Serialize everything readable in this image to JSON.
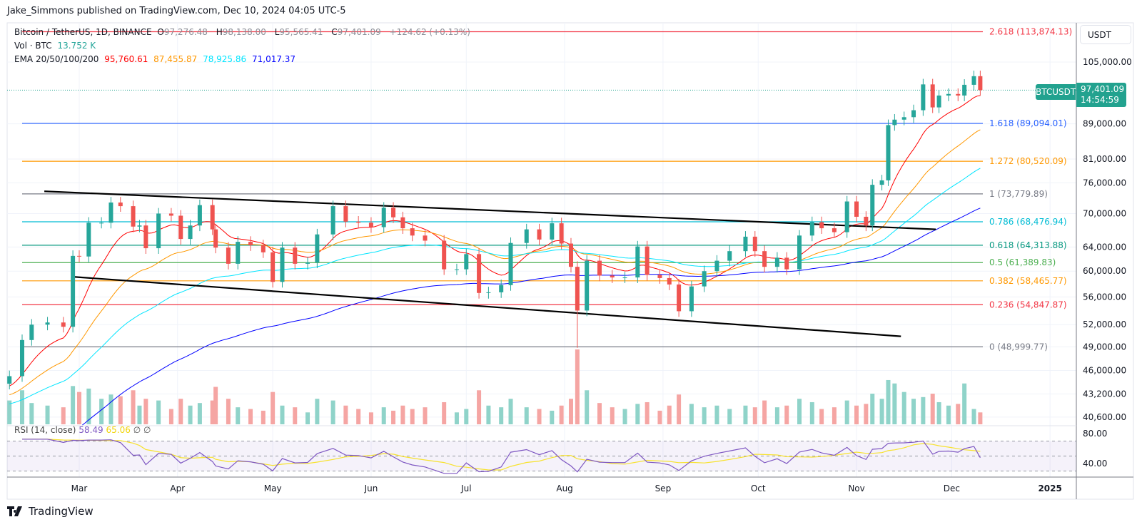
{
  "header": {
    "published": "Jake_Simmons published on TradingView.com, Dec 10, 2024 04:05 UTC-5"
  },
  "legend": {
    "symbol": "Bitcoin / TetherUS, 1D, BINANCE",
    "open_label": "O",
    "open": "97,276.48",
    "high_label": "H",
    "high": "98,138.00",
    "low_label": "L",
    "low": "95,565.41",
    "close_label": "C",
    "close": "97,401.09",
    "change": "+124.62 (+0.13%)",
    "vol_label": "Vol · BTC",
    "vol_value": "13.752 K",
    "ema_label": "EMA 20/50/100/200",
    "ema_values": [
      "95,760.61",
      "87,455.87",
      "78,925.86",
      "71,017.37"
    ],
    "ema_colors": [
      "#ff0000",
      "#ff9800",
      "#00e5ff",
      "#0000ff"
    ]
  },
  "rsi_legend": {
    "label": "RSI (14, close)",
    "rsi": "58.49",
    "ma": "65.06",
    "na1": "∅",
    "na2": "∅"
  },
  "axis": {
    "currency": "USDT",
    "symbol_tag": "BTCUSDT",
    "last_price": "97,401.09",
    "countdown": "14:54:59"
  },
  "brand": {
    "name": "TradingView"
  },
  "colors": {
    "up": "#26a69a",
    "down": "#ef5350",
    "vol_up": "#8fd3c9",
    "vol_down": "#f5a5a3",
    "rsi": "#7e57c2",
    "rsi_ma": "#f7e22e",
    "price_line": "#22a28f"
  },
  "chart_data": {
    "type": "candlestick",
    "scale": "log",
    "grid": true,
    "price_ticks": [
      "105,000.00",
      "89,000.00",
      "81,000.00",
      "76,000.00",
      "70,000.00",
      "64,000.00",
      "60,000.00",
      "56,000.00",
      "52,000.00",
      "49,000.00",
      "46,000.00",
      "43,200.00",
      "40,600.00"
    ],
    "price_tick_values": [
      105000,
      89000,
      81000,
      76000,
      70000,
      64000,
      60000,
      56000,
      52000,
      49000,
      46000,
      43200,
      40600
    ],
    "rsi_ticks": [
      "80.00",
      "40.00"
    ],
    "rsi_tick_values": [
      80,
      40
    ],
    "time_ticks": [
      {
        "label": "Mar",
        "date": "2024-03-01"
      },
      {
        "label": "Apr",
        "date": "2024-04-01"
      },
      {
        "label": "May",
        "date": "2024-05-01"
      },
      {
        "label": "Jun",
        "date": "2024-06-01"
      },
      {
        "label": "Jul",
        "date": "2024-07-01"
      },
      {
        "label": "Aug",
        "date": "2024-08-01"
      },
      {
        "label": "Sep",
        "date": "2024-09-01"
      },
      {
        "label": "Oct",
        "date": "2024-10-01"
      },
      {
        "label": "Nov",
        "date": "2024-11-01"
      },
      {
        "label": "Dec",
        "date": "2024-12-01"
      },
      {
        "label": "2025",
        "date": "2025-01-01",
        "bold": true
      }
    ],
    "fib_levels": [
      {
        "label": "2.618 (113,874.13)",
        "price": 113874.13,
        "color": "#f23645"
      },
      {
        "label": "1.618 (89,094.01)",
        "price": 89094.01,
        "color": "#2962ff"
      },
      {
        "label": "1.272 (80,520.09)",
        "price": 80520.09,
        "color": "#ff9800"
      },
      {
        "label": "1 (73,779.89)",
        "price": 73779.89,
        "color": "#787b86"
      },
      {
        "label": "0.786 (68,476.94)",
        "price": 68476.94,
        "color": "#00bcd4"
      },
      {
        "label": "0.618 (64,313.88)",
        "price": 64313.88,
        "color": "#089981"
      },
      {
        "label": "0.5 (61,389.83)",
        "price": 61389.83,
        "color": "#4caf50"
      },
      {
        "label": "0.382 (58,465.77)",
        "price": 58465.77,
        "color": "#ff9800"
      },
      {
        "label": "0.236 (54,847.87)",
        "price": 54847.87,
        "color": "#f23645"
      },
      {
        "label": "0 (48,999.77)",
        "price": 48999.77,
        "color": "#787b86"
      }
    ],
    "trendlines": [
      {
        "start": {
          "date": "2024-02-19",
          "price": 74300
        },
        "end": {
          "date": "2024-11-26",
          "price": 67100
        }
      },
      {
        "start": {
          "date": "2024-02-28",
          "price": 59100
        },
        "end": {
          "date": "2024-11-15",
          "price": 50400
        }
      }
    ],
    "last_price": 97401.09,
    "dates": [
      "2024-02-08",
      "2024-02-12",
      "2024-02-15",
      "2024-02-20",
      "2024-02-25",
      "2024-02-28",
      "2024-03-01",
      "2024-03-04",
      "2024-03-08",
      "2024-03-11",
      "2024-03-14",
      "2024-03-18",
      "2024-03-20",
      "2024-03-22",
      "2024-03-26",
      "2024-03-30",
      "2024-04-02",
      "2024-04-05",
      "2024-04-08",
      "2024-04-12",
      "2024-04-13",
      "2024-04-17",
      "2024-04-20",
      "2024-04-24",
      "2024-04-28",
      "2024-05-01",
      "2024-05-04",
      "2024-05-08",
      "2024-05-12",
      "2024-05-15",
      "2024-05-20",
      "2024-05-24",
      "2024-05-28",
      "2024-06-01",
      "2024-06-05",
      "2024-06-08",
      "2024-06-11",
      "2024-06-14",
      "2024-06-18",
      "2024-06-24",
      "2024-06-28",
      "2024-07-01",
      "2024-07-05",
      "2024-07-08",
      "2024-07-12",
      "2024-07-15",
      "2024-07-20",
      "2024-07-24",
      "2024-07-28",
      "2024-07-31",
      "2024-08-03",
      "2024-08-05",
      "2024-08-08",
      "2024-08-12",
      "2024-08-16",
      "2024-08-20",
      "2024-08-24",
      "2024-08-27",
      "2024-08-31",
      "2024-09-03",
      "2024-09-06",
      "2024-09-10",
      "2024-09-14",
      "2024-09-18",
      "2024-09-22",
      "2024-09-27",
      "2024-09-30",
      "2024-10-03",
      "2024-10-07",
      "2024-10-10",
      "2024-10-14",
      "2024-10-18",
      "2024-10-21",
      "2024-10-25",
      "2024-10-29",
      "2024-11-01",
      "2024-11-04",
      "2024-11-06",
      "2024-11-09",
      "2024-11-11",
      "2024-11-13",
      "2024-11-16",
      "2024-11-19",
      "2024-11-22",
      "2024-11-25",
      "2024-11-27",
      "2024-11-30",
      "2024-12-03",
      "2024-12-05",
      "2024-12-08",
      "2024-12-10"
    ],
    "close": [
      45300,
      49900,
      52000,
      52300,
      51700,
      62500,
      62400,
      68300,
      68300,
      72100,
      71400,
      67600,
      67800,
      63800,
      70000,
      69600,
      65400,
      67800,
      71600,
      67100,
      63900,
      61200,
      64900,
      64300,
      63100,
      58300,
      63900,
      61200,
      61400,
      66200,
      71400,
      68500,
      68300,
      67500,
      71100,
      69300,
      67300,
      66000,
      65100,
      60300,
      60300,
      62800,
      56600,
      56700,
      57800,
      64700,
      67100,
      65300,
      68200,
      64600,
      60700,
      54000,
      61700,
      59300,
      59000,
      59000,
      64100,
      59400,
      58900,
      57900,
      53900,
      57600,
      60000,
      61700,
      63300,
      65800,
      63300,
      60700,
      62200,
      60300,
      66000,
      68400,
      67300,
      66600,
      72300,
      69400,
      67800,
      75600,
      76500,
      88700,
      90000,
      90600,
      92300,
      98900,
      93000,
      96000,
      96400,
      96000,
      98800,
      101100,
      97401.09
    ],
    "volume_k": [
      28,
      40,
      25,
      22,
      20,
      45,
      38,
      42,
      30,
      35,
      33,
      40,
      22,
      30,
      28,
      18,
      30,
      22,
      25,
      28,
      44,
      30,
      20,
      18,
      16,
      38,
      22,
      20,
      14,
      30,
      28,
      22,
      18,
      14,
      20,
      16,
      22,
      18,
      20,
      26,
      14,
      18,
      40,
      22,
      20,
      30,
      20,
      18,
      16,
      22,
      30,
      88,
      40,
      25,
      20,
      18,
      24,
      26,
      16,
      22,
      35,
      24,
      20,
      22,
      18,
      22,
      20,
      28,
      20,
      22,
      30,
      26,
      18,
      20,
      28,
      22,
      24,
      36,
      30,
      52,
      48,
      38,
      30,
      32,
      36,
      26,
      22,
      24,
      48,
      18,
      14
    ]
  }
}
